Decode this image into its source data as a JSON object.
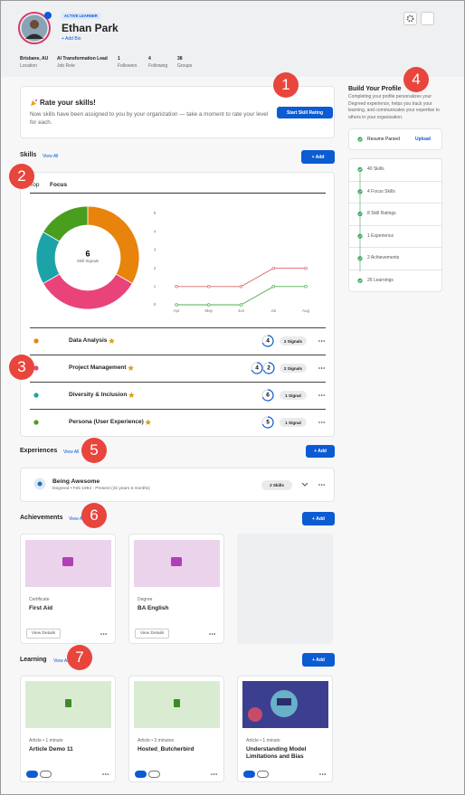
{
  "header": {
    "badge": "ACTIVE LEARNER",
    "name": "Ethan Park",
    "add_bio": "+ Add Bio",
    "stats": [
      {
        "value": "Brisbane, AU",
        "label": "Location"
      },
      {
        "value": "AI Transformation Lead",
        "label": "Job Role"
      },
      {
        "value": 1,
        "label": "Followers"
      },
      {
        "value": 4,
        "label": "Following"
      },
      {
        "value": 38,
        "label": "Groups"
      }
    ]
  },
  "callouts": [
    1,
    2,
    3,
    4,
    5,
    6,
    7
  ],
  "rate_card": {
    "title": "Rate your skills!",
    "text": "Now skills have been assigned to you by your organization — take a moment to rate your level for each.",
    "button": "Start Skill Rating"
  },
  "profile": {
    "title": "Build Your Profile",
    "description": "Completing your profile personalizes your Degreed experience, helps you track your learning, and communicates your expertise to others in your organization.",
    "resume": {
      "label": "Resume Parsed",
      "action": "Upload"
    },
    "items": [
      "40 Skills",
      "4 Focus Skills",
      "8 Skill Ratings",
      "1 Experience",
      "2 Achievements",
      "26 Learnings"
    ]
  },
  "skills": {
    "title": "Skills",
    "view_all": "View All",
    "add": "+ Add",
    "tabs": [
      "Top",
      "Focus"
    ],
    "ratings": [
      [
        4
      ],
      [
        4,
        2
      ],
      [
        6
      ],
      [
        5
      ]
    ]
  },
  "chart_data": [
    {
      "type": "pie",
      "categories": [
        "Data Analysis",
        "Project Management",
        "Diversity & Inclusion",
        "Persona (User Experience)"
      ],
      "values": [
        2,
        2,
        1,
        1
      ],
      "value_labels": [
        "2 Signals",
        "2 Signals",
        "1 Signal",
        "1 Signal"
      ],
      "colors": [
        "#e8830c",
        "#e9437a",
        "#1ba3a8",
        "#4a9e1f"
      ],
      "total": 6,
      "total_label": "Skill Signals"
    },
    {
      "type": "line",
      "categories": [
        "Apr",
        "May",
        "Jun",
        "Jul",
        "Aug"
      ],
      "series": [
        {
          "color": "#e06666",
          "values": [
            1,
            1,
            1,
            2,
            2
          ]
        },
        {
          "color": "#4caf50",
          "values": [
            0,
            0,
            0,
            1,
            1
          ]
        }
      ],
      "ylim": [
        0,
        5
      ],
      "yticks": [
        0,
        1,
        2,
        3,
        4,
        5
      ]
    }
  ],
  "experiences": {
    "title": "Experiences",
    "view_all": "View All",
    "add": "+ Add",
    "items": [
      {
        "title": "Being Awesome",
        "detail": "Degreed • Feb 1994 - Present (32 years 6 months)",
        "skills": "2 Skills"
      }
    ]
  },
  "achievements": {
    "title": "Achievements",
    "view_all": "View All",
    "add": "+ Add",
    "items": [
      {
        "type": "Certificate",
        "title": "First Aid",
        "button": "View Details"
      },
      {
        "type": "Degree",
        "title": "BA English",
        "button": "View Details"
      }
    ]
  },
  "learning": {
    "title": "Learning",
    "view_all": "View All",
    "add": "+ Add",
    "items": [
      {
        "meta": "Article • 1 minute",
        "title": "Article Demo 11"
      },
      {
        "meta": "Article • 3 minutes",
        "title": "Hosted_Butcherbird"
      },
      {
        "meta": "Article • 1 minute",
        "title": "Understanding Model Limitations and Bias"
      }
    ]
  }
}
